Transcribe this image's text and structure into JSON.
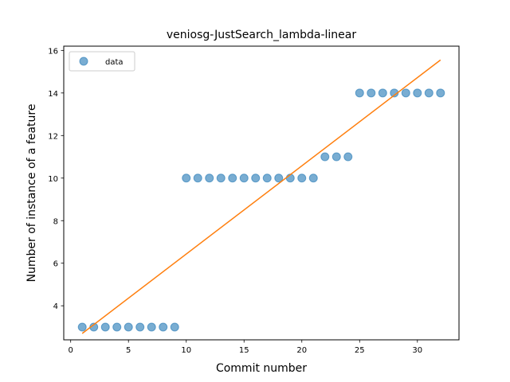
{
  "chart_data": {
    "type": "scatter",
    "title": "veniosg-JustSearch_lambda-linear",
    "xlabel": "Commit number",
    "ylabel": "Number of instance of a feature",
    "xlim": [
      -0.6,
      33.6
    ],
    "ylim": [
      2.4,
      16.2
    ],
    "xticks": [
      0,
      5,
      10,
      15,
      20,
      25,
      30
    ],
    "yticks": [
      4,
      6,
      8,
      10,
      12,
      14,
      16
    ],
    "grid": false,
    "legend": {
      "position": "top-left",
      "entries": [
        "data"
      ]
    },
    "series": [
      {
        "name": "data",
        "kind": "scatter",
        "color": "#1f77b4",
        "alpha": 0.6,
        "x": [
          1,
          2,
          3,
          4,
          5,
          6,
          7,
          8,
          9,
          10,
          11,
          12,
          13,
          14,
          15,
          16,
          17,
          18,
          19,
          20,
          21,
          22,
          23,
          24,
          25,
          26,
          27,
          28,
          29,
          30,
          31,
          32
        ],
        "y": [
          3,
          3,
          3,
          3,
          3,
          3,
          3,
          3,
          3,
          10,
          10,
          10,
          10,
          10,
          10,
          10,
          10,
          10,
          10,
          10,
          10,
          11,
          11,
          11,
          14,
          14,
          14,
          14,
          14,
          14,
          14,
          14
        ]
      },
      {
        "kind": "line",
        "color": "#ff7f0e",
        "x": [
          1,
          32
        ],
        "y": [
          2.7,
          15.55
        ]
      }
    ]
  }
}
